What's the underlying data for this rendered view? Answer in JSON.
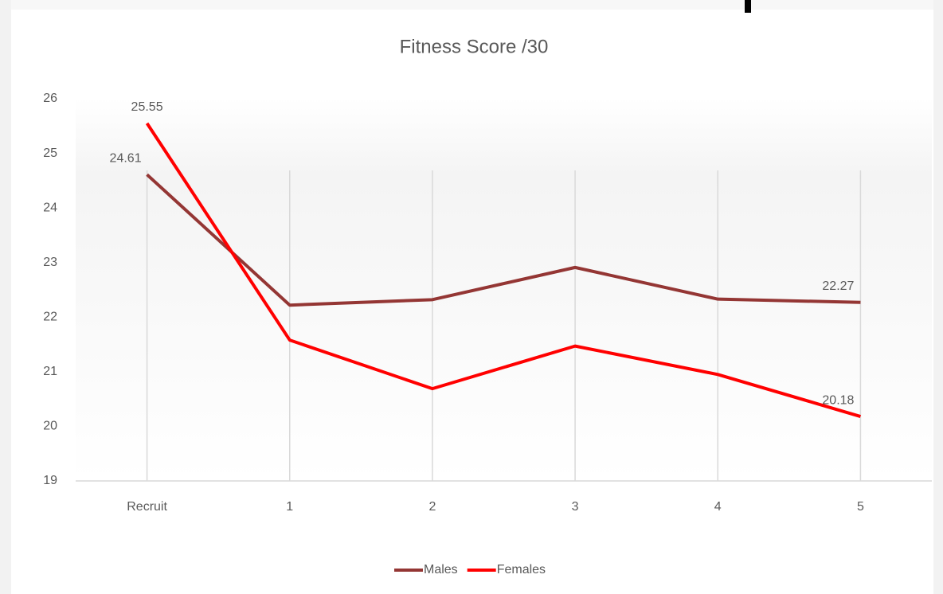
{
  "chart_data": {
    "type": "line",
    "title": "Fitness Score /30",
    "categories": [
      "Recruit",
      "1",
      "2",
      "3",
      "4",
      "5"
    ],
    "series": [
      {
        "name": "Males",
        "color": "#943634",
        "values": [
          24.61,
          22.22,
          22.32,
          22.91,
          22.33,
          22.27
        ]
      },
      {
        "name": "Females",
        "color": "#ff0000",
        "values": [
          25.55,
          21.58,
          20.69,
          21.47,
          20.95,
          20.18
        ]
      }
    ],
    "ylim": [
      19,
      26
    ],
    "yticks": [
      19,
      20,
      21,
      22,
      23,
      24,
      25,
      26
    ],
    "grid": "x",
    "legend": "bottom"
  }
}
